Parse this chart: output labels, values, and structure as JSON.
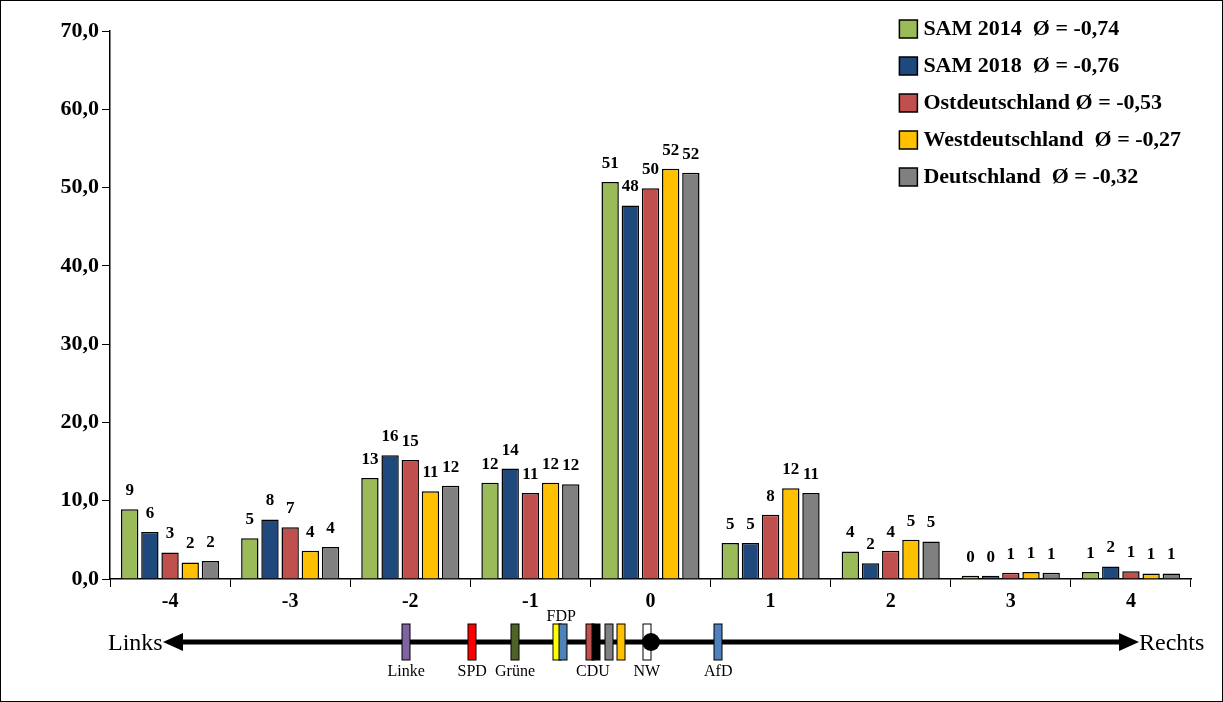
{
  "chart_data": [
    {
      "type": "bar",
      "categories": [
        "-4",
        "-3",
        "-2",
        "-1",
        "0",
        "1",
        "2",
        "3",
        "4"
      ],
      "ylim": [
        0,
        70
      ],
      "yticks": [
        {
          "value": 0,
          "label": "0,0"
        },
        {
          "value": 10,
          "label": "10,0"
        },
        {
          "value": 20,
          "label": "20,0"
        },
        {
          "value": 30,
          "label": "30,0"
        },
        {
          "value": 40,
          "label": "40,0"
        },
        {
          "value": 50,
          "label": "50,0"
        },
        {
          "value": 60,
          "label": "60,0"
        },
        {
          "value": 70,
          "label": "70,0"
        }
      ],
      "grid": false,
      "legend": "top right",
      "series": [
        {
          "name": "SAM 2014  Ø = -0,74",
          "color": "#9bbb59",
          "values": [
            8.9,
            5.2,
            12.9,
            12.3,
            50.7,
            4.6,
            3.5,
            0.4,
            0.9
          ],
          "value_labels": [
            "9",
            "5",
            "13",
            "12",
            "51",
            "5",
            "4",
            "0",
            "1"
          ]
        },
        {
          "name": "SAM 2018  Ø = -0,76",
          "color": "#1f497d",
          "values": [
            6.0,
            7.6,
            15.8,
            14.1,
            47.7,
            4.6,
            2.0,
            0.4,
            1.6
          ],
          "value_labels": [
            "6",
            "8",
            "16",
            "14",
            "48",
            "5",
            "2",
            "0",
            "2"
          ]
        },
        {
          "name": "Ostdeutschland Ø = -0,53",
          "color": "#c0504d",
          "values": [
            3.4,
            6.6,
            15.2,
            11.0,
            49.9,
            8.2,
            3.6,
            0.8,
            1.0
          ],
          "value_labels": [
            "3",
            "7",
            "15",
            "11",
            "50",
            "8",
            "4",
            "1",
            "1"
          ]
        },
        {
          "name": "Westdeutschland  Ø = -0,27",
          "color": "#ffc000",
          "values": [
            2.1,
            3.6,
            11.2,
            12.3,
            52.4,
            11.6,
            5.0,
            0.9,
            0.7
          ],
          "value_labels": [
            "2",
            "4",
            "11",
            "12",
            "52",
            "12",
            "5",
            "1",
            "1"
          ]
        },
        {
          "name": "Deutschland  Ø = -0,32",
          "color": "#808080",
          "values": [
            2.3,
            4.1,
            11.9,
            12.1,
            51.9,
            11.0,
            4.8,
            0.8,
            0.7
          ],
          "value_labels": [
            "2",
            "4",
            "12",
            "12",
            "52",
            "11",
            "5",
            "1",
            "1"
          ]
        }
      ]
    },
    {
      "type": "other",
      "annotations": [
        "Links",
        "Rechts",
        "Linke",
        "SPD",
        "Grüne",
        "FDP",
        "CDU",
        "NW",
        "AfD"
      ]
    }
  ]
}
